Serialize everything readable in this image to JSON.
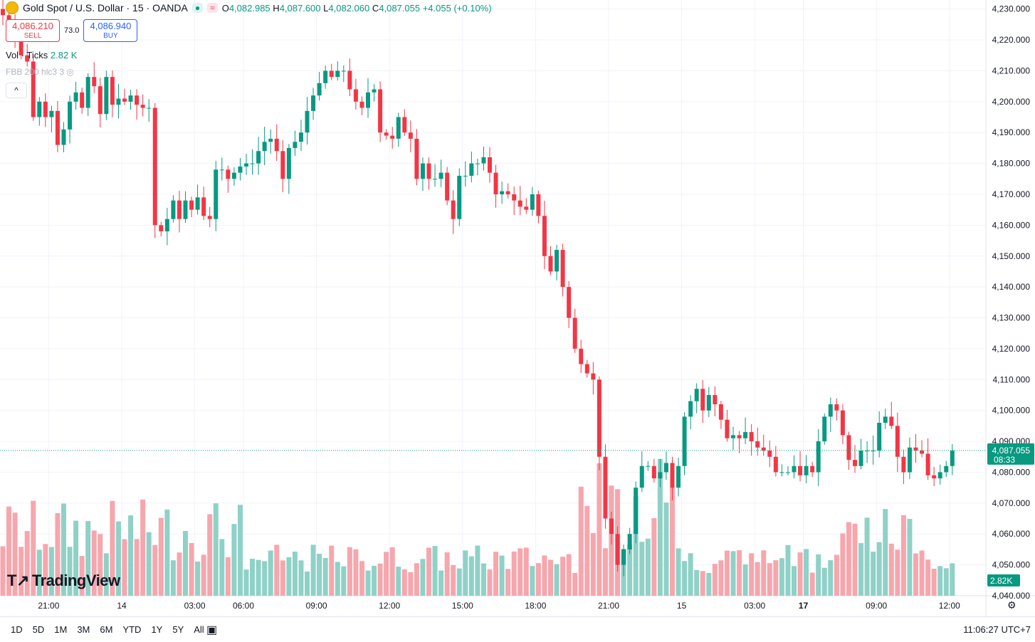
{
  "header": {
    "symbol": "Gold Spot / U.S. Dollar · 15 · OANDA",
    "open_label": "O",
    "open": "4,082.985",
    "high_label": "H",
    "high": "4,087.600",
    "low_label": "L",
    "low": "4,082.060",
    "close_label": "C",
    "close": "4,087.055",
    "change": "+4.055 (+0.10%)"
  },
  "trade": {
    "sell_price": "4,086.210",
    "sell_label": "SELL",
    "spread": "73.0",
    "buy_price": "4,086.940",
    "buy_label": "BUY"
  },
  "indicators": {
    "vol_label": "Vol · Ticks",
    "vol_value": "2.82 K",
    "fbb_label": "FBB 200 hlc3 3"
  },
  "logo": "TradingView",
  "range_buttons": [
    "1D",
    "5D",
    "1M",
    "3M",
    "6M",
    "YTD",
    "1Y",
    "5Y",
    "All"
  ],
  "clock": "11:06:27 UTC+7",
  "colors": {
    "up": "#089981",
    "down": "#f23645",
    "vol_up": "#8fd1c7",
    "vol_down": "#f6a6ad"
  },
  "chart_data": {
    "type": "candlestick",
    "title": "Gold Spot / U.S. Dollar · 15 · OANDA",
    "ylim": [
      4040,
      4232
    ],
    "y_ticks": [
      "4,040.000",
      "4,050.000",
      "4,060.000",
      "4,070.000",
      "4,080.000",
      "4,090.000",
      "4,100.000",
      "4,110.000",
      "4,120.000",
      "4,130.000",
      "4,140.000",
      "4,150.000",
      "4,160.000",
      "4,170.000",
      "4,180.000",
      "4,190.000",
      "4,200.000",
      "4,210.000",
      "4,220.000",
      "4,230.000"
    ],
    "y_tick_values": [
      4040,
      4050,
      4060,
      4070,
      4080,
      4090,
      4100,
      4110,
      4120,
      4130,
      4140,
      4150,
      4160,
      4170,
      4180,
      4190,
      4200,
      4210,
      4220,
      4230
    ],
    "x_ticks": [
      {
        "label": "21:00",
        "bar": 8,
        "bold": false
      },
      {
        "label": "14",
        "bar": 20,
        "bold": false
      },
      {
        "label": "03:00",
        "bar": 32,
        "bold": false
      },
      {
        "label": "06:00",
        "bar": 40,
        "bold": false
      },
      {
        "label": "09:00",
        "bar": 52,
        "bold": false
      },
      {
        "label": "12:00",
        "bar": 64,
        "bold": false
      },
      {
        "label": "15:00",
        "bar": 76,
        "bold": false
      },
      {
        "label": "18:00",
        "bar": 88,
        "bold": false
      },
      {
        "label": "21:00",
        "bar": 100,
        "bold": false
      },
      {
        "label": "15",
        "bar": 112,
        "bold": false
      },
      {
        "label": "03:00",
        "bar": 124,
        "bold": false
      },
      {
        "label": "17",
        "bar": 132,
        "bold": true
      },
      {
        "label": "09:00",
        "bar": 144,
        "bold": false
      },
      {
        "label": "12:00",
        "bar": 156,
        "bold": false
      }
    ],
    "last_price_label": "4,087.055",
    "last_price": 4087.055,
    "countdown": "08:33",
    "volume_label": "2.82K",
    "closes": [
      4228,
      4225,
      4220,
      4215,
      4213,
      4195,
      4200,
      4195,
      4197,
      4186,
      4191,
      4200,
      4203,
      4198,
      4208,
      4205,
      4196,
      4208,
      4199,
      4201,
      4200,
      4202,
      4199,
      4198,
      4198,
      4160,
      4158,
      4162,
      4168,
      4162,
      4168,
      4165,
      4169,
      4163,
      4162,
      4178,
      4178,
      4175,
      4177,
      4179,
      4180,
      4180,
      4184,
      4187,
      4188,
      4184,
      4175,
      4185,
      4187,
      4190,
      4197,
      4202,
      4206,
      4210,
      4208,
      4210,
      4210,
      4204,
      4200,
      4198,
      4203,
      4204,
      4190,
      4189,
      4188,
      4195,
      4190,
      4188,
      4175,
      4180,
      4175,
      4175,
      4177,
      4168,
      4162,
      4176,
      4176,
      4180,
      4180,
      4182,
      4177,
      4170,
      4171,
      4170,
      4168,
      4166,
      4165,
      4170,
      4163,
      4150,
      4145,
      4152,
      4140,
      4130,
      4120,
      4115,
      4112,
      4110,
      4085,
      4065,
      4060,
      4050,
      4055,
      4060,
      4075,
      4082,
      4082,
      4078,
      4080,
      4083,
      4075,
      4082,
      4098,
      4103,
      4107,
      4100,
      4105,
      4102,
      4097,
      4091,
      4092,
      4091,
      4093,
      4090,
      4088,
      4087,
      4085,
      4080,
      4080,
      4080,
      4082,
      4079,
      4082,
      4080,
      4090,
      4098,
      4102,
      4100,
      4092,
      4084,
      4082,
      4087,
      4087,
      4087,
      4096,
      4098,
      4095,
      4085,
      4080,
      4088,
      4087,
      4086,
      4079,
      4078,
      4080,
      4082,
      4087
    ]
  }
}
